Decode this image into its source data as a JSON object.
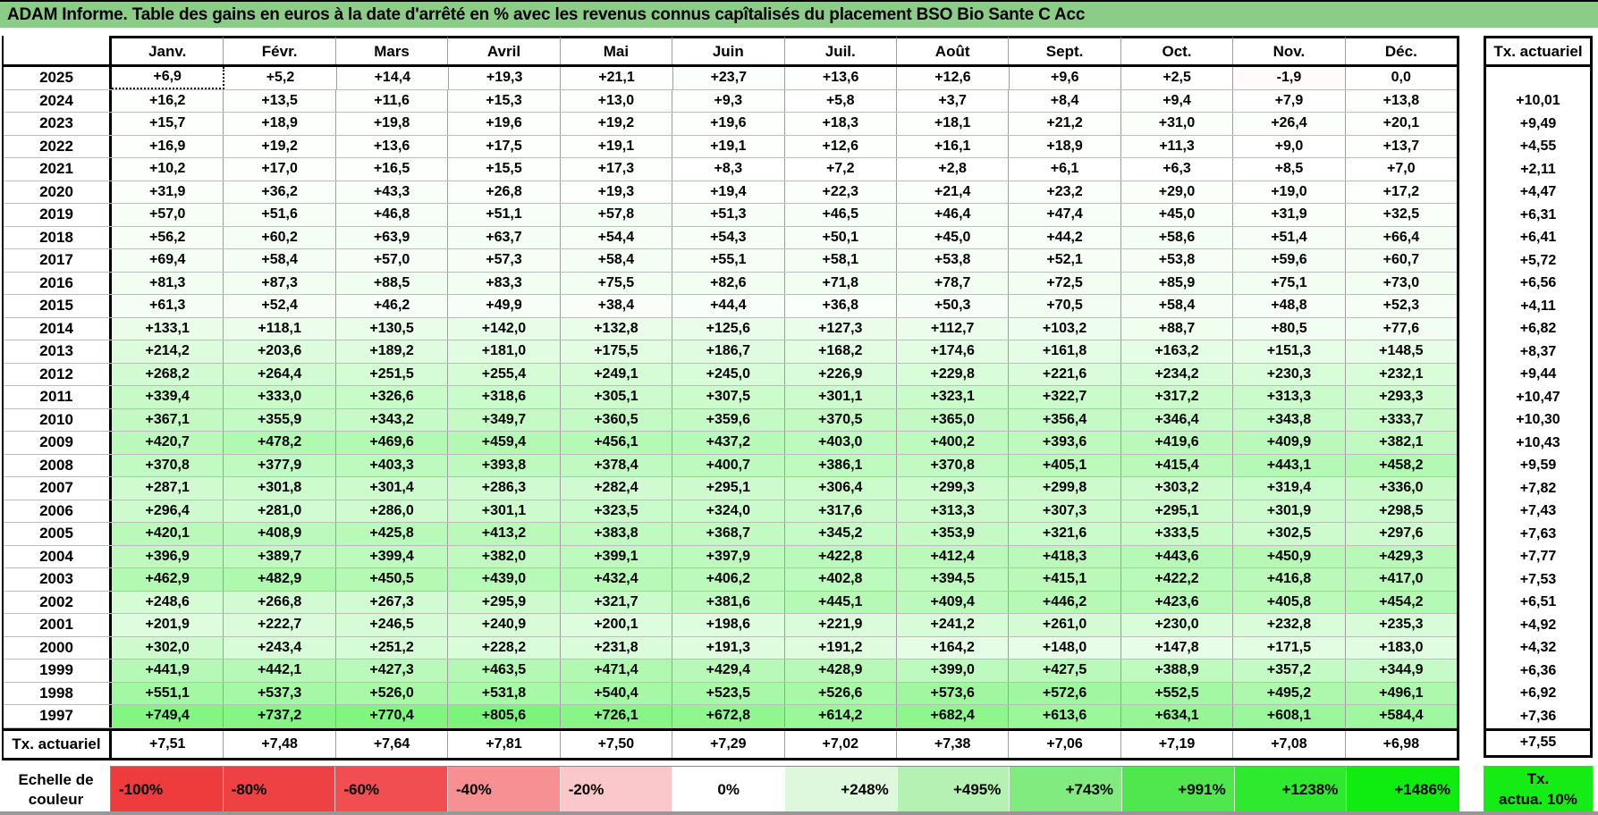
{
  "title": "ADAM Informe. Table des gains en euros à la date d'arrêté en % avec les revenus connus capîtalisés du placement BSO Bio Sante C Acc",
  "months": [
    "Janv.",
    "Févr.",
    "Mars",
    "Avril",
    "Mai",
    "Juin",
    "Juil.",
    "Août",
    "Sept.",
    "Oct.",
    "Nov.",
    "Déc."
  ],
  "tx_column_header": "Tx. actuariel",
  "rows": [
    {
      "year": "2025",
      "values": [
        "+6,9",
        "+5,2",
        "+14,4",
        "+19,3",
        "+21,1",
        "+23,7",
        "+13,6",
        "+12,6",
        "+9,6",
        "+2,5",
        "-1,9",
        "0,0"
      ],
      "tx": ""
    },
    {
      "year": "2024",
      "values": [
        "+16,2",
        "+13,5",
        "+11,6",
        "+15,3",
        "+13,0",
        "+9,3",
        "+5,8",
        "+3,7",
        "+8,4",
        "+9,4",
        "+7,9",
        "+13,8"
      ],
      "tx": "+10,01"
    },
    {
      "year": "2023",
      "values": [
        "+15,7",
        "+18,9",
        "+19,8",
        "+19,6",
        "+19,2",
        "+19,6",
        "+18,3",
        "+18,1",
        "+21,2",
        "+31,0",
        "+26,4",
        "+20,1"
      ],
      "tx": "+9,49"
    },
    {
      "year": "2022",
      "values": [
        "+16,9",
        "+19,2",
        "+13,6",
        "+17,5",
        "+19,1",
        "+19,1",
        "+12,6",
        "+16,1",
        "+18,9",
        "+11,3",
        "+9,0",
        "+13,7"
      ],
      "tx": "+4,55"
    },
    {
      "year": "2021",
      "values": [
        "+10,2",
        "+17,0",
        "+16,5",
        "+15,5",
        "+17,3",
        "+8,3",
        "+7,2",
        "+2,8",
        "+6,1",
        "+6,3",
        "+8,5",
        "+7,0"
      ],
      "tx": "+2,11"
    },
    {
      "year": "2020",
      "values": [
        "+31,9",
        "+36,2",
        "+43,3",
        "+26,8",
        "+19,3",
        "+19,4",
        "+22,3",
        "+21,4",
        "+23,2",
        "+29,0",
        "+19,0",
        "+17,2"
      ],
      "tx": "+4,47"
    },
    {
      "year": "2019",
      "values": [
        "+57,0",
        "+51,6",
        "+46,8",
        "+51,1",
        "+57,8",
        "+51,3",
        "+46,5",
        "+46,4",
        "+47,4",
        "+45,0",
        "+31,9",
        "+32,5"
      ],
      "tx": "+6,31"
    },
    {
      "year": "2018",
      "values": [
        "+56,2",
        "+60,2",
        "+63,9",
        "+63,7",
        "+54,4",
        "+54,3",
        "+50,1",
        "+45,0",
        "+44,2",
        "+58,6",
        "+51,4",
        "+66,4"
      ],
      "tx": "+6,41"
    },
    {
      "year": "2017",
      "values": [
        "+69,4",
        "+58,4",
        "+57,0",
        "+57,3",
        "+58,4",
        "+55,1",
        "+58,1",
        "+53,8",
        "+52,1",
        "+53,8",
        "+59,6",
        "+60,7"
      ],
      "tx": "+5,72"
    },
    {
      "year": "2016",
      "values": [
        "+81,3",
        "+87,3",
        "+88,5",
        "+83,3",
        "+75,5",
        "+82,6",
        "+71,8",
        "+78,7",
        "+72,5",
        "+85,9",
        "+75,1",
        "+73,0"
      ],
      "tx": "+6,56"
    },
    {
      "year": "2015",
      "values": [
        "+61,3",
        "+52,4",
        "+46,2",
        "+49,9",
        "+38,4",
        "+44,4",
        "+36,8",
        "+50,3",
        "+70,5",
        "+58,4",
        "+48,8",
        "+52,3"
      ],
      "tx": "+4,11"
    },
    {
      "year": "2014",
      "values": [
        "+133,1",
        "+118,1",
        "+130,5",
        "+142,0",
        "+132,8",
        "+125,6",
        "+127,3",
        "+112,7",
        "+103,2",
        "+88,7",
        "+80,5",
        "+77,6"
      ],
      "tx": "+6,82"
    },
    {
      "year": "2013",
      "values": [
        "+214,2",
        "+203,6",
        "+189,2",
        "+181,0",
        "+175,5",
        "+186,7",
        "+168,2",
        "+174,6",
        "+161,8",
        "+163,2",
        "+151,3",
        "+148,5"
      ],
      "tx": "+8,37"
    },
    {
      "year": "2012",
      "values": [
        "+268,2",
        "+264,4",
        "+251,5",
        "+255,4",
        "+249,1",
        "+245,0",
        "+226,9",
        "+229,8",
        "+221,6",
        "+234,2",
        "+230,3",
        "+232,1"
      ],
      "tx": "+9,44"
    },
    {
      "year": "2011",
      "values": [
        "+339,4",
        "+333,0",
        "+326,6",
        "+318,6",
        "+305,1",
        "+307,5",
        "+301,1",
        "+323,1",
        "+322,7",
        "+317,2",
        "+313,3",
        "+293,3"
      ],
      "tx": "+10,47"
    },
    {
      "year": "2010",
      "values": [
        "+367,1",
        "+355,9",
        "+343,2",
        "+349,7",
        "+360,5",
        "+359,6",
        "+370,5",
        "+365,0",
        "+356,4",
        "+346,4",
        "+343,8",
        "+333,7"
      ],
      "tx": "+10,30"
    },
    {
      "year": "2009",
      "values": [
        "+420,7",
        "+478,2",
        "+469,6",
        "+459,4",
        "+456,1",
        "+437,2",
        "+403,0",
        "+400,2",
        "+393,6",
        "+419,6",
        "+409,9",
        "+382,1"
      ],
      "tx": "+10,43"
    },
    {
      "year": "2008",
      "values": [
        "+370,8",
        "+377,9",
        "+403,3",
        "+393,8",
        "+378,4",
        "+400,7",
        "+386,1",
        "+370,8",
        "+405,1",
        "+415,4",
        "+443,1",
        "+458,2"
      ],
      "tx": "+9,59"
    },
    {
      "year": "2007",
      "values": [
        "+287,1",
        "+301,8",
        "+301,4",
        "+286,3",
        "+282,4",
        "+295,1",
        "+306,4",
        "+299,3",
        "+299,8",
        "+303,2",
        "+319,4",
        "+336,0"
      ],
      "tx": "+7,82"
    },
    {
      "year": "2006",
      "values": [
        "+296,4",
        "+281,0",
        "+286,0",
        "+301,1",
        "+323,5",
        "+324,0",
        "+317,6",
        "+313,3",
        "+307,3",
        "+295,1",
        "+301,9",
        "+298,5"
      ],
      "tx": "+7,43"
    },
    {
      "year": "2005",
      "values": [
        "+420,1",
        "+408,9",
        "+425,8",
        "+413,2",
        "+383,8",
        "+368,7",
        "+345,2",
        "+353,9",
        "+321,6",
        "+333,5",
        "+302,5",
        "+297,6"
      ],
      "tx": "+7,63"
    },
    {
      "year": "2004",
      "values": [
        "+396,9",
        "+389,7",
        "+399,4",
        "+382,0",
        "+399,1",
        "+397,9",
        "+422,8",
        "+412,4",
        "+418,3",
        "+443,6",
        "+450,9",
        "+429,3"
      ],
      "tx": "+7,77"
    },
    {
      "year": "2003",
      "values": [
        "+462,9",
        "+482,9",
        "+450,5",
        "+439,0",
        "+432,4",
        "+406,2",
        "+402,8",
        "+394,5",
        "+415,1",
        "+422,2",
        "+416,8",
        "+417,0"
      ],
      "tx": "+7,53"
    },
    {
      "year": "2002",
      "values": [
        "+248,6",
        "+266,8",
        "+267,3",
        "+295,9",
        "+321,7",
        "+381,6",
        "+445,1",
        "+409,4",
        "+446,2",
        "+423,6",
        "+405,8",
        "+454,2"
      ],
      "tx": "+6,51"
    },
    {
      "year": "2001",
      "values": [
        "+201,9",
        "+222,7",
        "+246,5",
        "+240,9",
        "+200,1",
        "+198,6",
        "+221,9",
        "+241,2",
        "+261,0",
        "+230,0",
        "+232,8",
        "+235,3"
      ],
      "tx": "+4,92"
    },
    {
      "year": "2000",
      "values": [
        "+302,0",
        "+243,4",
        "+251,2",
        "+228,2",
        "+231,8",
        "+191,3",
        "+191,2",
        "+164,2",
        "+148,0",
        "+147,8",
        "+171,5",
        "+183,0"
      ],
      "tx": "+4,32"
    },
    {
      "year": "1999",
      "values": [
        "+441,9",
        "+442,1",
        "+427,3",
        "+463,5",
        "+471,4",
        "+429,4",
        "+428,9",
        "+399,0",
        "+427,5",
        "+388,9",
        "+357,2",
        "+344,9"
      ],
      "tx": "+6,36"
    },
    {
      "year": "1998",
      "values": [
        "+551,1",
        "+537,3",
        "+526,0",
        "+531,8",
        "+540,4",
        "+523,5",
        "+526,6",
        "+573,6",
        "+572,6",
        "+552,5",
        "+495,2",
        "+496,1"
      ],
      "tx": "+6,92"
    },
    {
      "year": "1997",
      "values": [
        "+749,4",
        "+737,2",
        "+770,4",
        "+805,6",
        "+726,1",
        "+672,8",
        "+614,2",
        "+682,4",
        "+613,6",
        "+634,1",
        "+608,1",
        "+584,4"
      ],
      "tx": "+7,36"
    }
  ],
  "footer": {
    "label": "Tx. actuariel",
    "values": [
      "+7,51",
      "+7,48",
      "+7,64",
      "+7,81",
      "+7,50",
      "+7,29",
      "+7,02",
      "+7,38",
      "+7,06",
      "+7,19",
      "+7,08",
      "+6,98"
    ],
    "tx": "+7,55"
  },
  "active_cell": {
    "year": "2025",
    "month_index": 0
  },
  "legend": {
    "title_line1": "Echelle de",
    "title_line2": "couleur",
    "stops": [
      {
        "label": "-100%",
        "color": "#EE3B3B"
      },
      {
        "label": "-80%",
        "color": "#EE4144"
      },
      {
        "label": "-60%",
        "color": "#F04E50"
      },
      {
        "label": "-40%",
        "color": "#F69092"
      },
      {
        "label": "-20%",
        "color": "#FAC8CA"
      },
      {
        "label": "0%",
        "color": "#FFFFFF"
      },
      {
        "label": "+248%",
        "color": "#DDF8DC"
      },
      {
        "label": "+495%",
        "color": "#B4F1B2"
      },
      {
        "label": "+743%",
        "color": "#81EB7F"
      },
      {
        "label": "+991%",
        "color": "#4FE74D"
      },
      {
        "label": "+1238%",
        "color": "#2FE92F"
      },
      {
        "label": "+1486%",
        "color": "#0FEC0F"
      }
    ]
  },
  "tx_box": {
    "line1": "Tx.",
    "line2": "actua. 10%",
    "color": "#15EB15"
  },
  "colors": {
    "title_bar_bg": "#8BCC86",
    "positive_end": "#0AEB0A",
    "negative_end": "#ED2830"
  },
  "color_scale": {
    "max_percent": 1486,
    "min_percent": -100
  }
}
